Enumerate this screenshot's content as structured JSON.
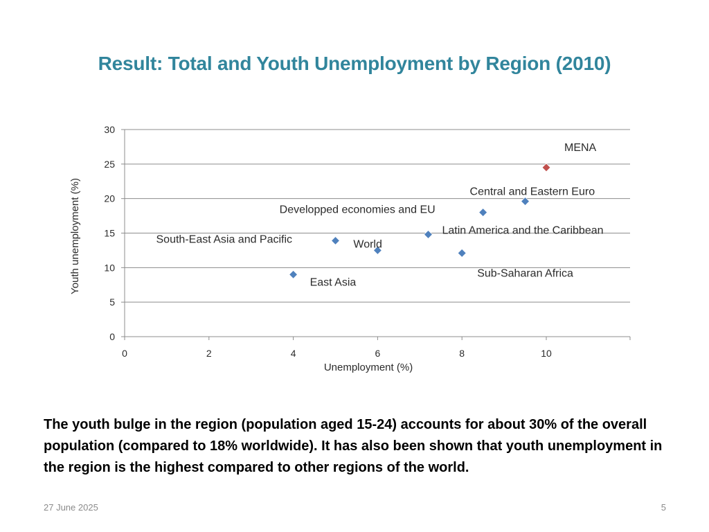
{
  "slide": {
    "title": "Result: Total and Youth Unemployment by Region (2010)",
    "body": "The youth bulge in the region (population aged 15-24) accounts for about 30% of the overall population (compared to 18% worldwide). It has also been shown that youth unemployment in the region is the highest compared to other regions of the world.",
    "footer_date": "27 June 2025",
    "page_number": "5"
  },
  "chart_data": {
    "type": "scatter",
    "xlabel": "Unemployment (%)",
    "ylabel": "Youth unemployment (%)",
    "xlim": [
      0,
      12
    ],
    "ylim": [
      0,
      30
    ],
    "xticks": [
      0,
      2,
      4,
      6,
      8,
      10
    ],
    "yticks": [
      0,
      5,
      10,
      15,
      20,
      25,
      30
    ],
    "grid": "horizontal",
    "points": [
      {
        "label": "MENA",
        "x": 10,
        "y": 24.5,
        "color": "#c0504d"
      },
      {
        "label": "Central and Eastern Euro",
        "x": 9.5,
        "y": 19.6,
        "color": "#4f81bd"
      },
      {
        "label": "Developped economies and EU",
        "x": 8.5,
        "y": 18,
        "color": "#4f81bd"
      },
      {
        "label": "Latin America and the Caribbean",
        "x": 7.2,
        "y": 14.8,
        "color": "#4f81bd"
      },
      {
        "label": "South-East Asia and Pacific",
        "x": 5,
        "y": 13.9,
        "color": "#4f81bd"
      },
      {
        "label": "World",
        "x": 6,
        "y": 12.5,
        "color": "#4f81bd"
      },
      {
        "label": "Sub-Saharan Africa",
        "x": 8,
        "y": 12.1,
        "color": "#4f81bd"
      },
      {
        "label": "East Asia",
        "x": 4,
        "y": 9,
        "color": "#4f81bd"
      }
    ]
  }
}
